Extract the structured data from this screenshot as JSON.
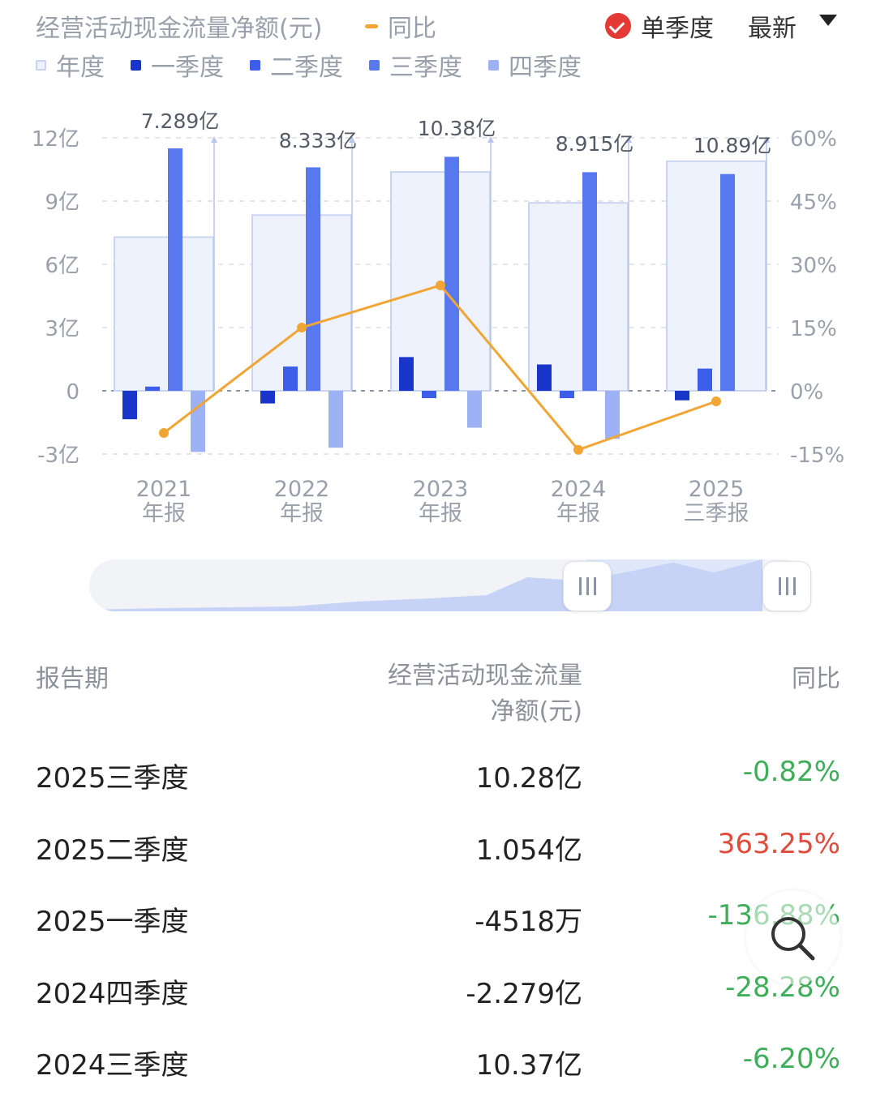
{
  "header": {
    "title": "经营活动现金流量净额(元)",
    "yoy_legend": "同比",
    "single_quarter_label": "单季度",
    "latest_label": "最新"
  },
  "legend": [
    {
      "label": "年度",
      "color": "#eef2fc",
      "border": "#c9d4f0"
    },
    {
      "label": "一季度",
      "color": "#1a35c9"
    },
    {
      "label": "二季度",
      "color": "#3d5ee8"
    },
    {
      "label": "三季度",
      "color": "#5878ef"
    },
    {
      "label": "四季度",
      "color": "#9db1f5"
    }
  ],
  "colors": {
    "annual": "#eef2fc",
    "annual_border": "#c9d4f0",
    "q1": "#1a35c9",
    "q2": "#3d5ee8",
    "q3": "#5878ef",
    "q4": "#9db1f5",
    "yoy": "#f0a534",
    "negative": "#3fae5a",
    "positive": "#e04b3b"
  },
  "chart_data": {
    "type": "bar",
    "categories": [
      "2021\n年报",
      "2022\n年报",
      "2023\n年报",
      "2024\n年报",
      "2025\n三季报"
    ],
    "annual_labels": [
      "7.289亿",
      "8.333亿",
      "10.38亿",
      "8.915亿",
      "10.89亿"
    ],
    "series": [
      {
        "name": "年度",
        "values": [
          7.289,
          8.333,
          10.38,
          8.915,
          10.89
        ]
      },
      {
        "name": "一季度",
        "values": [
          -1.35,
          -0.6,
          1.6,
          1.25,
          -0.4518
        ]
      },
      {
        "name": "二季度",
        "values": [
          0.2,
          1.15,
          -0.35,
          -0.35,
          1.054
        ]
      },
      {
        "name": "三季度",
        "values": [
          11.5,
          10.6,
          11.1,
          10.37,
          10.28
        ]
      },
      {
        "name": "四季度",
        "values": [
          -2.9,
          -2.7,
          -1.75,
          -2.279,
          null
        ]
      },
      {
        "name": "同比",
        "axis": "right",
        "values": [
          -10,
          15,
          25,
          -14,
          -2.5
        ]
      }
    ],
    "yticks_left": [
      "12亿",
      "9亿",
      "6亿",
      "3亿",
      "0",
      "-3亿"
    ],
    "yticks_right": [
      "60%",
      "45%",
      "30%",
      "15%",
      "0%",
      "-15%"
    ],
    "ylim_left": [
      -3,
      12
    ],
    "ylim_right": [
      -15,
      60
    ],
    "grid": true
  },
  "table": {
    "headers": {
      "period": "报告期",
      "value_line1": "经营活动现金流量",
      "value_line2": "净额(元)",
      "yoy": "同比"
    },
    "rows": [
      {
        "period": "2025三季度",
        "value": "10.28亿",
        "yoy": "-0.82%",
        "sign": "neg"
      },
      {
        "period": "2025二季度",
        "value": "1.054亿",
        "yoy": "363.25%",
        "sign": "pos"
      },
      {
        "period": "2025一季度",
        "value": "-4518万",
        "yoy": "-136.88%",
        "sign": "neg"
      },
      {
        "period": "2024四季度",
        "value": "-2.279亿",
        "yoy": "-28.28%",
        "sign": "neg"
      },
      {
        "period": "2024三季度",
        "value": "10.37亿",
        "yoy": "-6.20%",
        "sign": "neg"
      }
    ]
  },
  "icons": {
    "selected": "check-circle-icon",
    "dropdown": "caret-down-icon",
    "search": "search-icon"
  }
}
